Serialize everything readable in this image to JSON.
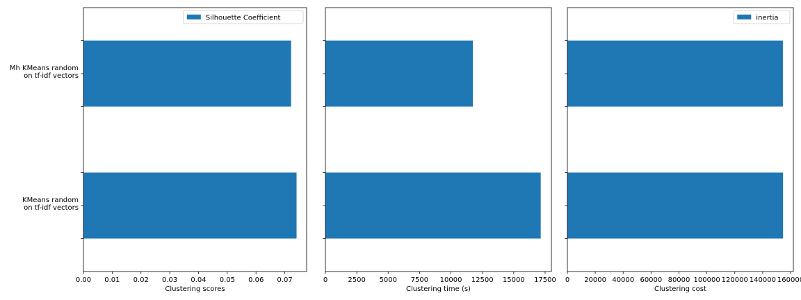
{
  "chart_data": [
    {
      "type": "bar",
      "orientation": "horizontal",
      "categories": [
        "Mh KMeans random\non  tf-idf vectors",
        "KMeans random\non  tf-idf vectors"
      ],
      "values": [
        0.0722,
        0.0741
      ],
      "xlabel": "Clustering scores",
      "xlim": [
        0,
        0.0776
      ],
      "xticks": [
        "0.00",
        "0.01",
        "0.02",
        "0.03",
        "0.04",
        "0.05",
        "0.06",
        "0.07"
      ],
      "xtick_values": [
        0,
        0.01,
        0.02,
        0.03,
        0.04,
        0.05,
        0.06,
        0.07
      ],
      "legend": {
        "label": "Silhouette Coefficient",
        "position": "upper right"
      },
      "grid": false,
      "color": "#1f77b4"
    },
    {
      "type": "bar",
      "orientation": "horizontal",
      "categories": [
        "Mh KMeans random\non  tf-idf vectors",
        "KMeans random\non  tf-idf vectors"
      ],
      "values": [
        11750,
        17150
      ],
      "xlabel": "Clustering time (s)",
      "xlim": [
        0,
        18000
      ],
      "xticks": [
        "0",
        "2500",
        "5000",
        "7500",
        "10000",
        "12500",
        "15000",
        "17500"
      ],
      "xtick_values": [
        0,
        2500,
        5000,
        7500,
        10000,
        12500,
        15000,
        17500
      ],
      "grid": false,
      "color": "#1f77b4"
    },
    {
      "type": "bar",
      "orientation": "horizontal",
      "categories": [
        "Mh KMeans random\non  tf-idf vectors",
        "KMeans random\non  tf-idf vectors"
      ],
      "values": [
        154500,
        154600
      ],
      "xlabel": "Clustering cost",
      "xlim": [
        0,
        162000
      ],
      "xticks": [
        "0",
        "20000",
        "40000",
        "60000",
        "80000",
        "100000",
        "120000",
        "140000",
        "160000"
      ],
      "xtick_values": [
        0,
        20000,
        40000,
        60000,
        80000,
        100000,
        120000,
        140000,
        160000
      ],
      "legend": {
        "label": "inertia",
        "position": "upper right"
      },
      "grid": false,
      "color": "#1f77b4"
    }
  ]
}
